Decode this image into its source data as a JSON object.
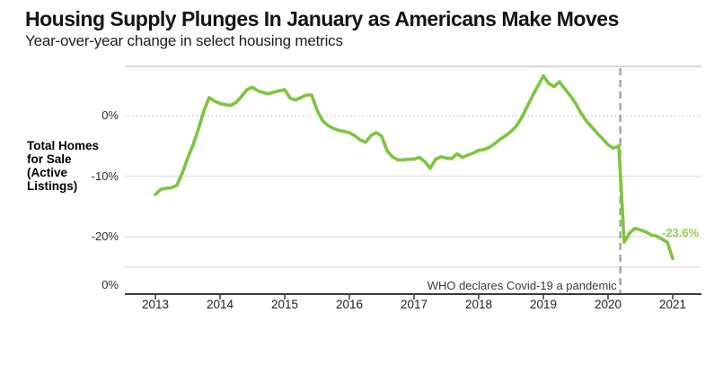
{
  "header": {
    "title": "Housing Supply Plunges In January as Americans Make Moves",
    "subtitle": "Year-over-year change in select housing metrics"
  },
  "chart_data": {
    "type": "line",
    "title": "Housing Supply Plunges In January as Americans Make Moves",
    "subtitle": "Year-over-year change in select housing metrics",
    "series_label": "Total Homes for Sale (Active Listings)",
    "x_start_year": 2013,
    "x_interval": "monthly",
    "x_end_year": 2021,
    "values": [
      -13.0,
      -12.2,
      -12.0,
      -11.9,
      -11.5,
      -9.5,
      -7.0,
      -4.8,
      -2.2,
      0.8,
      3.0,
      2.4,
      2.0,
      1.8,
      1.7,
      2.2,
      3.2,
      4.3,
      4.7,
      4.1,
      3.8,
      3.6,
      3.9,
      4.1,
      4.3,
      2.9,
      2.6,
      3.0,
      3.4,
      3.4,
      0.9,
      -0.8,
      -1.6,
      -2.1,
      -2.4,
      -2.6,
      -2.8,
      -3.3,
      -4.0,
      -4.4,
      -3.3,
      -2.8,
      -3.4,
      -5.8,
      -6.8,
      -7.3,
      -7.3,
      -7.2,
      -7.2,
      -6.9,
      -7.6,
      -8.7,
      -7.2,
      -6.8,
      -7.0,
      -7.1,
      -6.3,
      -6.9,
      -6.5,
      -6.2,
      -5.7,
      -5.6,
      -5.2,
      -4.6,
      -3.9,
      -3.3,
      -2.6,
      -1.7,
      -0.3,
      1.5,
      3.3,
      4.9,
      6.6,
      5.3,
      4.8,
      5.6,
      4.4,
      3.3,
      2.0,
      0.4,
      -0.9,
      -1.9,
      -2.9,
      -3.8,
      -4.8,
      -5.4,
      -5.0,
      -20.9,
      -19.4,
      -18.6,
      -18.9,
      -19.2,
      -19.7,
      -19.9,
      -20.4,
      -20.9,
      -23.6
    ],
    "x_tick_labels": [
      "2013",
      "2014",
      "2015",
      "2016",
      "2017",
      "2018",
      "2019",
      "2020",
      "2021"
    ],
    "y_gridlines": [
      {
        "value": 0,
        "label": "0%",
        "style": "dotted"
      },
      {
        "value": -10,
        "label": "-10%",
        "style": "solid"
      },
      {
        "value": -20,
        "label": "-20%",
        "style": "solid"
      },
      {
        "value": -25,
        "label": "",
        "style": "solid"
      }
    ],
    "ylim": [
      -29.5,
      8.1
    ],
    "grid": true,
    "legend_position": "left",
    "bottom_axis_label": "0%",
    "annotation": {
      "text": "WHO declares Covid-19 a pandemic",
      "x": 2020.19,
      "style": "dashed-vertical"
    },
    "end_label": {
      "text": "-23.6%",
      "value": -23.6
    },
    "colors": {
      "line_green": "#7cc63e",
      "label_green": "#93ce52",
      "axis_dark": "#3b3b3b",
      "gridline": "#e4e4e4",
      "dotted_zero_line": "#c8c8c8",
      "dashed_annotation_line": "#a6a6a6"
    }
  }
}
